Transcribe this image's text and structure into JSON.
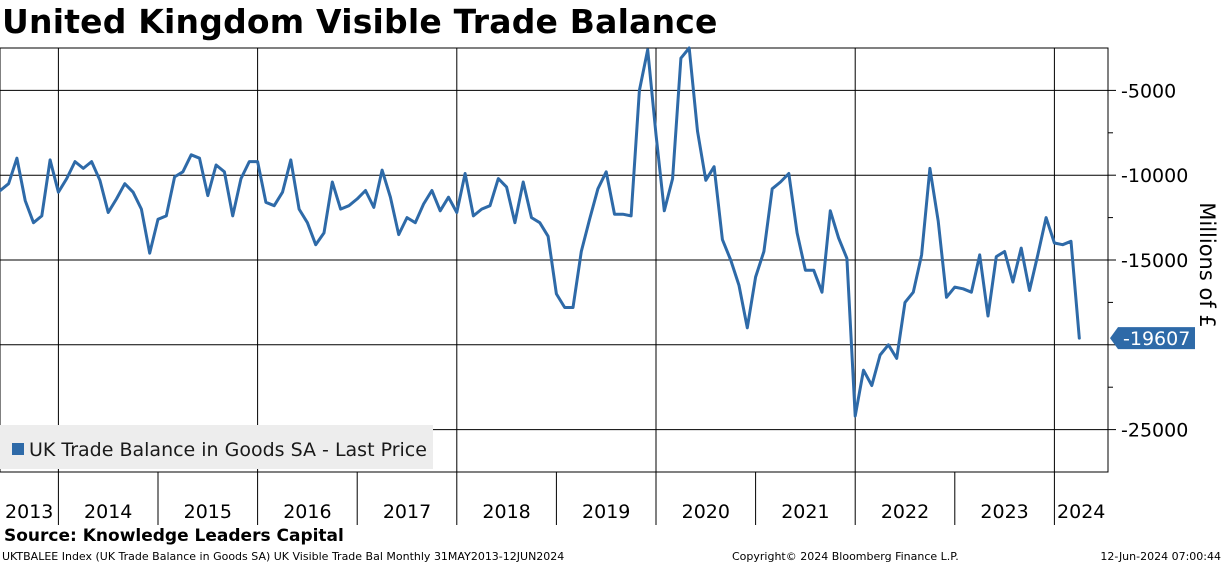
{
  "chart_data": {
    "type": "line",
    "title": "United Kingdom Visible Trade Balance",
    "ylabel": "Millions of £",
    "xlabel": "",
    "ylim": [
      -27500,
      -2500
    ],
    "yticks": [
      -5000,
      -10000,
      -15000,
      -20000,
      -25000
    ],
    "ytick_labels": [
      "-5000",
      "-10000",
      "-15000",
      "",
      "-25000"
    ],
    "x_year_labels": [
      "2013",
      "2014",
      "2015",
      "2016",
      "2017",
      "2018",
      "2019",
      "2020",
      "2021",
      "2022",
      "2023",
      "2024"
    ],
    "x_start": "2013-05",
    "grid": true,
    "legend": {
      "position": "bottom-left",
      "entries": [
        "UK Trade Balance in Goods SA - Last Price"
      ]
    },
    "last_value_label": "-19607",
    "series": [
      {
        "name": "UK Trade Balance in Goods SA - Last Price",
        "color": "#2e6aa8",
        "values": [
          -11100,
          -10900,
          -10500,
          -9000,
          -11500,
          -12800,
          -12400,
          -9100,
          -11000,
          -10200,
          -9200,
          -9600,
          -9200,
          -10300,
          -12200,
          -11400,
          -10500,
          -11000,
          -12000,
          -14600,
          -12600,
          -12400,
          -10100,
          -9800,
          -8800,
          -9000,
          -11200,
          -9400,
          -9800,
          -12400,
          -10200,
          -9200,
          -9200,
          -11600,
          -11800,
          -11000,
          -9100,
          -12000,
          -12800,
          -14100,
          -13400,
          -10400,
          -12000,
          -11800,
          -11400,
          -10900,
          -11900,
          -9700,
          -11300,
          -13500,
          -12500,
          -12800,
          -11700,
          -10900,
          -12100,
          -11300,
          -12200,
          -9900,
          -12400,
          -12000,
          -11800,
          -10200,
          -10700,
          -12800,
          -10400,
          -12500,
          -12800,
          -13600,
          -17000,
          -17800,
          -17800,
          -14500,
          -12600,
          -10800,
          -9800,
          -12300,
          -12300,
          -12400,
          -5000,
          -2600,
          -7600,
          -12100,
          -10200,
          -3100,
          -2500,
          -7400,
          -10300,
          -9500,
          -13800,
          -15000,
          -16500,
          -19000,
          -16000,
          -14500,
          -10800,
          -10400,
          -9900,
          -13400,
          -15600,
          -15600,
          -16900,
          -12100,
          -13700,
          -14900,
          -24200,
          -21500,
          -22400,
          -20600,
          -20000,
          -20800,
          -17500,
          -16900,
          -14700,
          -9600,
          -12700,
          -17200,
          -16600,
          -16700,
          -16900,
          -14700,
          -18300,
          -14800,
          -14500,
          -16300,
          -14300,
          -16800,
          -14700,
          -12500,
          -14000,
          -14100,
          -13900,
          -19607
        ]
      }
    ]
  }
}
